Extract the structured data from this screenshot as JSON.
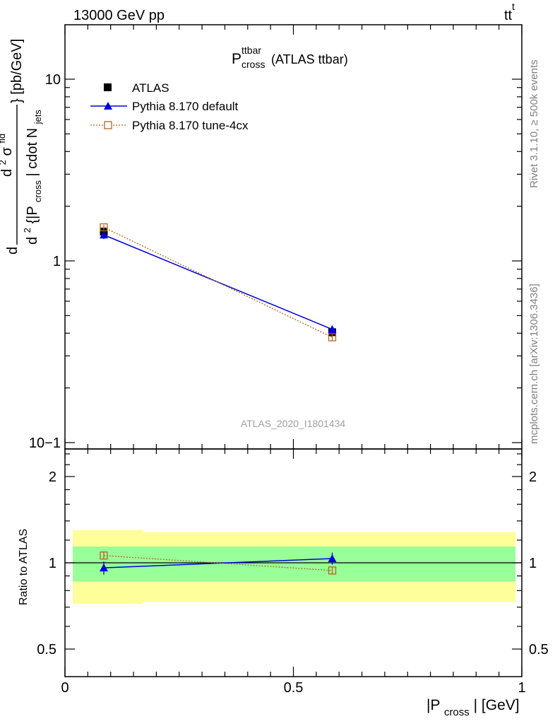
{
  "header": {
    "left": "13000 GeV pp",
    "right_main": "tt",
    "right_bar": "t"
  },
  "plot_title": {
    "main": "P",
    "sup": "ttbar",
    "sub": "cross",
    "suffix": "(ATLAS ttbar)"
  },
  "watermark": "ATLAS_2020_I1801434",
  "side_text": {
    "rivet": "Rivet 3.1.10, ≥ 500k events",
    "mcplots": "mcplots.cern.ch [arXiv:1306.3436]"
  },
  "ylabel_main": {
    "d": "d",
    "num_sup": "2",
    "num_sigma": "σ",
    "num_fid": "fid",
    "den": "d",
    "den_sup": "2",
    "den_body": "{|P",
    "den_cross": "cross",
    "den_mid": "| cdot N",
    "den_jets": "jets",
    "unit": "} [pb/GeV]"
  },
  "ylabel_ratio": "Ratio to ATLAS",
  "xlabel": {
    "pre": "|P",
    "sub": "cross",
    "post": "| [GeV]"
  },
  "colors": {
    "atlas": "#000000",
    "pythia_default": "#0000dd",
    "pythia_4cx": "#b5651d",
    "band_inner": "#99ff99",
    "band_outer": "#ffff99",
    "side_text": "#808080"
  },
  "chart_data": [
    {
      "type": "scatter",
      "panel": "main",
      "yscale": "log",
      "xlim": [
        0,
        1
      ],
      "ylim": [
        0.1,
        20
      ],
      "y_tick_labels": [
        "10−1",
        "1",
        "10"
      ],
      "legend_position": "top-left",
      "series": [
        {
          "name": "ATLAS",
          "x": [
            0.085,
            0.585
          ],
          "y": [
            1.45,
            0.405
          ],
          "yerr": [
            0.06,
            0.02
          ],
          "marker": "filled-square",
          "color": "#000000"
        },
        {
          "name": "Pythia 8.170 default",
          "x": [
            0.085,
            0.585
          ],
          "y": [
            1.39,
            0.42
          ],
          "yerr": [
            0.07,
            0.02
          ],
          "marker": "filled-triangle",
          "line": "solid",
          "color": "#0000dd"
        },
        {
          "name": "Pythia 8.170 tune-4cx",
          "x": [
            0.085,
            0.585
          ],
          "y": [
            1.53,
            0.38
          ],
          "yerr": [
            0.05,
            0.015
          ],
          "marker": "open-square",
          "line": "dotted",
          "color": "#b5651d"
        }
      ]
    },
    {
      "type": "scatter",
      "panel": "ratio",
      "ylabel": "Ratio to ATLAS",
      "xlabel": "|Pcross| [GeV]",
      "xlim": [
        0,
        1
      ],
      "ylim": [
        0.4,
        2.5
      ],
      "x_tick_labels": [
        "0",
        "0.5",
        "1"
      ],
      "y_tick_labels": [
        "0.5",
        "1",
        "2"
      ],
      "bands": {
        "bins": [
          [
            0,
            0.17
          ],
          [
            0.17,
            1.0
          ]
        ],
        "inner": [
          [
            0.86,
            1.14
          ],
          [
            0.86,
            1.14
          ]
        ],
        "outer": [
          [
            0.72,
            1.3
          ],
          [
            0.73,
            1.28
          ]
        ]
      },
      "series": [
        {
          "name": "Pythia 8.170 default",
          "x": [
            0.085,
            0.585
          ],
          "y": [
            0.96,
            1.035
          ],
          "yerr": [
            0.05,
            0.05
          ],
          "color": "#0000dd"
        },
        {
          "name": "Pythia 8.170 tune-4cx",
          "x": [
            0.085,
            0.585
          ],
          "y": [
            1.06,
            0.94
          ],
          "yerr": [
            0.03,
            0.03
          ],
          "color": "#b5651d"
        }
      ]
    }
  ]
}
